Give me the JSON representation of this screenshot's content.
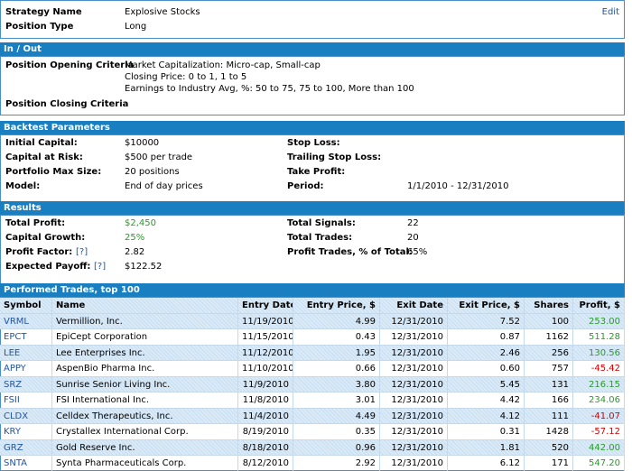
{
  "strategy": {
    "edit": "Edit",
    "rows": [
      {
        "label": "Strategy Name",
        "value": "Explosive Stocks"
      },
      {
        "label": "Position Type",
        "value": "Long"
      }
    ]
  },
  "in_out": {
    "title": "In / Out",
    "opening_label": "Position Opening Criteria",
    "opening_lines": [
      "Market Capitalization: Micro-cap, Small-cap",
      "Closing Price: 0 to 1, 1 to 5",
      "Earnings to Industry Avg, %: 50 to 75, 75 to 100, More than 100"
    ],
    "closing_label": "Position Closing Criteria"
  },
  "backtest": {
    "title": "Backtest Parameters",
    "left": [
      {
        "label": "Initial Capital:",
        "value": "$10000"
      },
      {
        "label": "Capital at Risk:",
        "value": "$500 per trade"
      },
      {
        "label": "Portfolio Max Size:",
        "value": "20 positions"
      },
      {
        "label": "Model:",
        "value": "End of day prices"
      }
    ],
    "right": [
      {
        "label": "Stop Loss:"
      },
      {
        "label": "Trailing Stop Loss:"
      },
      {
        "label": "Take Profit:"
      },
      {
        "label": "Period:",
        "value": "1/1/2010 - 12/31/2010"
      }
    ]
  },
  "results": {
    "title": "Results",
    "left": [
      {
        "label": "Total Profit:",
        "value": "$2,450",
        "color": "#2a9a2a"
      },
      {
        "label": "Capital Growth:",
        "value": "25%",
        "color": "#2a9a2a"
      },
      {
        "label": "Profit Factor:",
        "help": "[?]",
        "value": "2.82"
      },
      {
        "label": "Expected Payoff:",
        "help": "[?]",
        "value": "$122.52"
      }
    ],
    "right": [
      {
        "label": "Total Signals:",
        "value": "22"
      },
      {
        "label": "Total Trades:",
        "value": "20"
      },
      {
        "label": "Profit Trades, % of Total:",
        "value": "65%"
      }
    ]
  },
  "trades": {
    "title": "Performed Trades, top 100",
    "columns": [
      "Symbol",
      "Name",
      "Entry Date",
      "Entry Price, $",
      "Exit Date",
      "Exit Price, $",
      "Shares",
      "Profit, $"
    ],
    "rows": [
      [
        "VRML",
        "Vermillion, Inc.",
        "11/19/2010",
        "4.99",
        "12/31/2010",
        "7.52",
        "100",
        "253.00"
      ],
      [
        "EPCT",
        "EpiCept Corporation",
        "11/15/2010",
        "0.43",
        "12/31/2010",
        "0.87",
        "1162",
        "511.28"
      ],
      [
        "LEE",
        "Lee Enterprises Inc.",
        "11/12/2010",
        "1.95",
        "12/31/2010",
        "2.46",
        "256",
        "130.56"
      ],
      [
        "APPY",
        "AspenBio Pharma Inc.",
        "11/10/2010",
        "0.66",
        "12/31/2010",
        "0.60",
        "757",
        "-45.42"
      ],
      [
        "SRZ",
        "Sunrise Senior Living Inc.",
        "11/9/2010",
        "3.80",
        "12/31/2010",
        "5.45",
        "131",
        "216.15"
      ],
      [
        "FSII",
        "FSI International Inc.",
        "11/8/2010",
        "3.01",
        "12/31/2010",
        "4.42",
        "166",
        "234.06"
      ],
      [
        "CLDX",
        "Celldex Therapeutics, Inc.",
        "11/4/2010",
        "4.49",
        "12/31/2010",
        "4.12",
        "111",
        "-41.07"
      ],
      [
        "KRY",
        "Crystallex International Corp.",
        "8/19/2010",
        "0.35",
        "12/31/2010",
        "0.31",
        "1428",
        "-57.12"
      ],
      [
        "GRZ",
        "Gold Reserve Inc.",
        "8/18/2010",
        "0.96",
        "12/31/2010",
        "1.81",
        "520",
        "442.00"
      ],
      [
        "SNTA",
        "Synta Pharmaceuticals Corp.",
        "8/12/2010",
        "2.92",
        "12/31/2010",
        "6.12",
        "171",
        "547.20"
      ]
    ]
  }
}
